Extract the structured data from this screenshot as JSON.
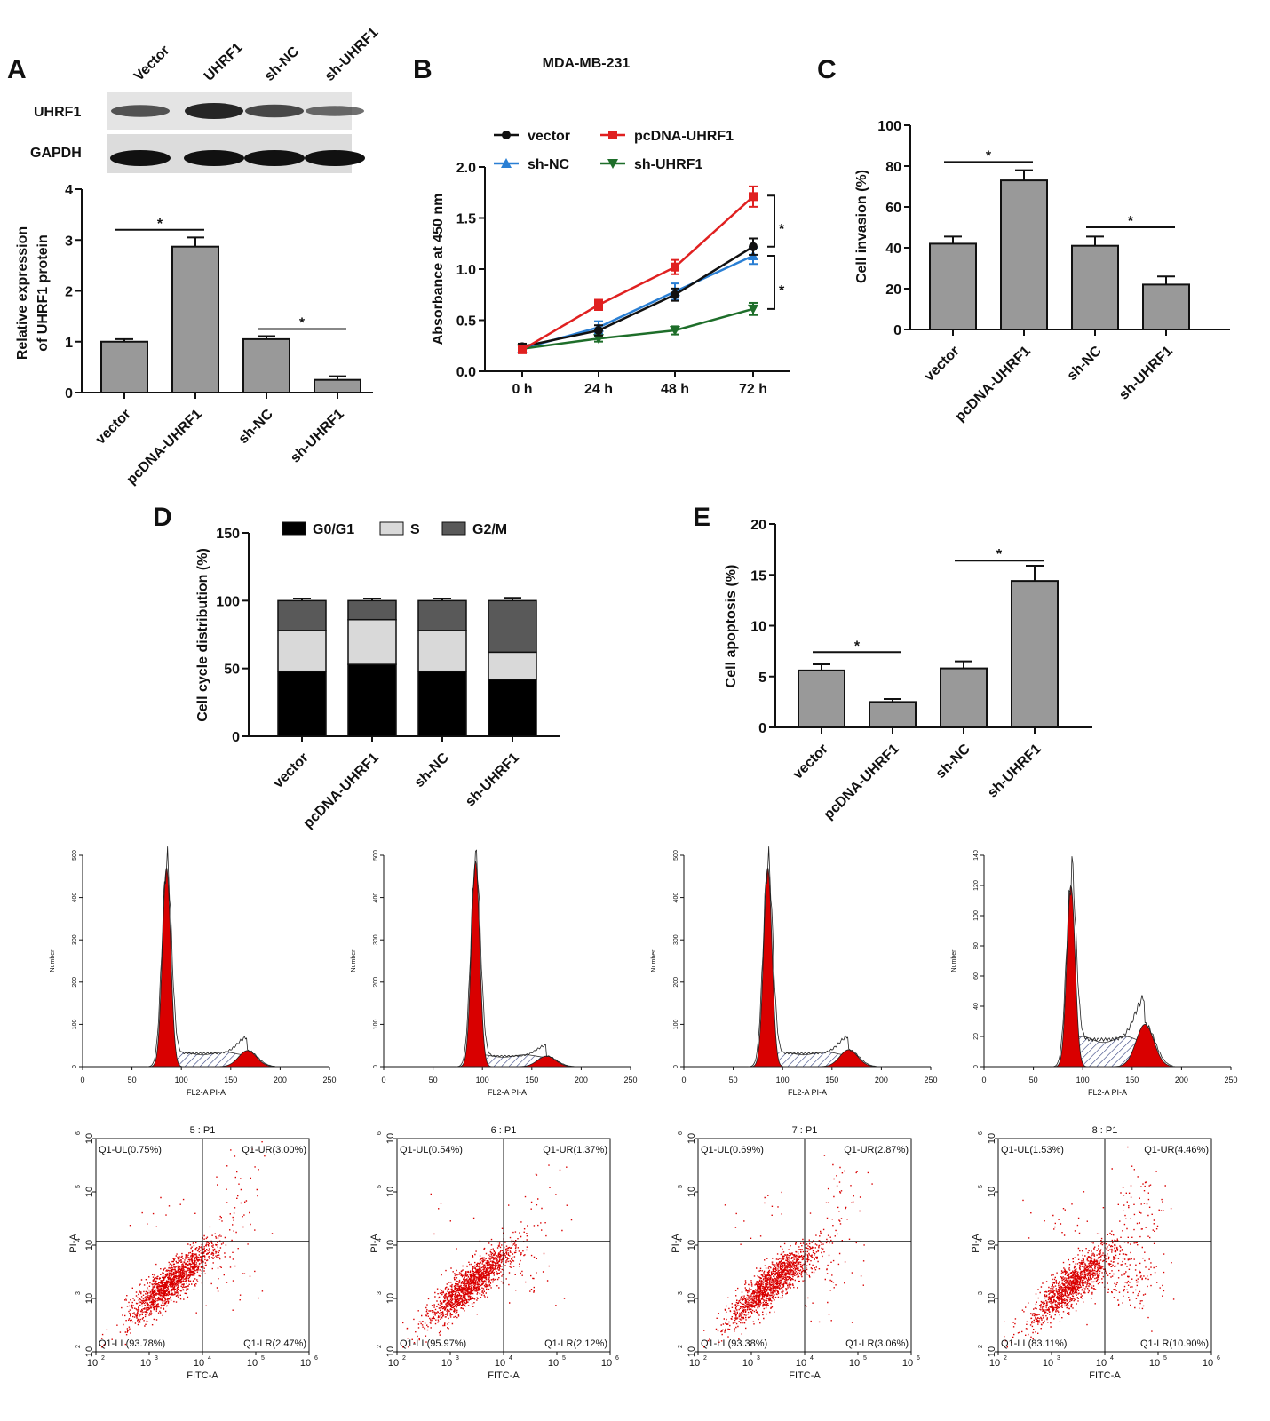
{
  "panels": {
    "a": "A",
    "b": "B",
    "c": "C",
    "d": "D",
    "e": "E"
  },
  "blot": {
    "lanes": [
      "Vector",
      "UHRF1",
      "sh-NC",
      "sh-UHRF1"
    ],
    "rows": [
      "UHRF1",
      "GAPDH"
    ]
  },
  "colors": {
    "bar": "#999999",
    "vector": "#111111",
    "pcdna": "#e02020",
    "shnc": "#2a7fd4",
    "shuhrf1": "#1e6e2a",
    "g0g1": "#000000",
    "s": "#d9d9d9",
    "g2m": "#595959",
    "flow": "#d90000"
  },
  "chart_data": [
    {
      "id": "a",
      "type": "bar",
      "categories": [
        "vector",
        "pcDNA-UHRF1",
        "sh-NC",
        "sh-UHRF1"
      ],
      "values": [
        1.0,
        2.87,
        1.05,
        0.25
      ],
      "errors": [
        0.05,
        0.18,
        0.06,
        0.07
      ],
      "ylabel_lines": [
        "Relative expression",
        "of UHRF1 protein"
      ],
      "ylim": [
        0,
        4
      ],
      "yticks": [
        0,
        1,
        2,
        3,
        4
      ],
      "sig": [
        {
          "from": 0,
          "to": 1,
          "label": "*",
          "y": 3.2
        },
        {
          "from": 2,
          "to": 3,
          "label": "*",
          "y": 1.25
        }
      ]
    },
    {
      "id": "b",
      "type": "line",
      "title": "MDA-MB-231",
      "x": [
        "0 h",
        "24 h",
        "48 h",
        "72 h"
      ],
      "ylabel": "Absorbance at 450 nm",
      "ylim": [
        0,
        2.0
      ],
      "yticks": [
        "0.0",
        "0.5",
        "1.0",
        "1.5",
        "2.0"
      ],
      "series": [
        {
          "name": "vector",
          "values": [
            0.24,
            0.4,
            0.75,
            1.22
          ],
          "errors": [
            0.03,
            0.05,
            0.06,
            0.08
          ]
        },
        {
          "name": "pcDNA-UHRF1",
          "values": [
            0.21,
            0.65,
            1.02,
            1.71
          ],
          "errors": [
            0.03,
            0.05,
            0.07,
            0.1
          ]
        },
        {
          "name": "sh-NC",
          "values": [
            0.22,
            0.43,
            0.78,
            1.13
          ],
          "errors": [
            0.03,
            0.06,
            0.08,
            0.08
          ]
        },
        {
          "name": "sh-UHRF1",
          "values": [
            0.22,
            0.32,
            0.4,
            0.61
          ],
          "errors": [
            0.03,
            0.03,
            0.04,
            0.06
          ]
        }
      ],
      "sig": [
        "*",
        "*"
      ]
    },
    {
      "id": "c",
      "type": "bar",
      "categories": [
        "vector",
        "pcDNA-UHRF1",
        "sh-NC",
        "sh-UHRF1"
      ],
      "values": [
        42,
        73,
        41,
        22
      ],
      "errors": [
        3.5,
        5,
        4.5,
        4
      ],
      "ylabel": "Cell invasion (%)",
      "ylim": [
        0,
        100
      ],
      "yticks": [
        0,
        20,
        40,
        60,
        80,
        100
      ],
      "sig": [
        {
          "from": 0,
          "to": 1,
          "label": "*",
          "y": 82
        },
        {
          "from": 2,
          "to": 3,
          "label": "*",
          "y": 50
        }
      ]
    },
    {
      "id": "d",
      "type": "bar",
      "categories": [
        "vector",
        "pcDNA-UHRF1",
        "sh-NC",
        "sh-UHRF1"
      ],
      "series": [
        {
          "name": "G0/G1",
          "values": [
            48,
            53,
            48,
            42
          ],
          "errors": [
            3,
            2,
            3,
            2
          ]
        },
        {
          "name": "S",
          "values": [
            30,
            33,
            30,
            20
          ],
          "errors": [
            2,
            2,
            2,
            1
          ]
        },
        {
          "name": "G2/M",
          "values": [
            22,
            14,
            22,
            38
          ],
          "errors": [
            1.5,
            1.5,
            1.5,
            2
          ]
        }
      ],
      "ylabel": "Cell cycle distribution (%)",
      "ylim": [
        0,
        150
      ],
      "yticks": [
        0,
        50,
        100,
        150
      ]
    },
    {
      "id": "e",
      "type": "bar",
      "categories": [
        "vector",
        "pcDNA-UHRF1",
        "sh-NC",
        "sh-UHRF1"
      ],
      "values": [
        5.6,
        2.5,
        5.8,
        14.4
      ],
      "errors": [
        0.6,
        0.3,
        0.7,
        1.5
      ],
      "ylabel": "Cell apoptosis (%)",
      "ylim": [
        0,
        20
      ],
      "yticks": [
        0,
        5,
        10,
        15,
        20
      ],
      "sig": [
        {
          "from": 0,
          "to": 1,
          "label": "*",
          "y": 7.4
        },
        {
          "from": 2,
          "to": 3,
          "label": "*",
          "y": 16.4
        }
      ]
    }
  ],
  "histograms": {
    "ylabel": "Number",
    "xlabel": "FL2-A PI-A",
    "xticks": [
      0,
      50,
      100,
      150,
      200,
      250
    ],
    "panels": [
      {
        "ymax": 500,
        "yticks": [
          0,
          100,
          200,
          300,
          400,
          500
        ],
        "g1_peak": 470,
        "g1_pos": 85,
        "g2_peak": 38,
        "g2_pos": 167,
        "s_level": 35
      },
      {
        "ymax": 500,
        "yticks": [
          0,
          100,
          200,
          300,
          400,
          500
        ],
        "g1_peak": 485,
        "g1_pos": 93,
        "g2_peak": 25,
        "g2_pos": 165,
        "s_level": 28
      },
      {
        "ymax": 500,
        "yticks": [
          0,
          100,
          200,
          300,
          400,
          500
        ],
        "g1_peak": 470,
        "g1_pos": 85,
        "g2_peak": 40,
        "g2_pos": 167,
        "s_level": 35
      },
      {
        "ymax": 140,
        "yticks": [
          0,
          20,
          40,
          60,
          80,
          100,
          120,
          140
        ],
        "g1_peak": 120,
        "g1_pos": 88,
        "g2_peak": 28,
        "g2_pos": 163,
        "s_level": 20
      }
    ]
  },
  "flow_plots": {
    "xlabel": "FITC-A",
    "ylabel": "PI-A",
    "ticks": [
      "10",
      "10",
      "10",
      "10",
      "10"
    ],
    "exps": [
      "2",
      "3",
      "4",
      "5",
      "6"
    ],
    "panels": [
      {
        "title": "5 : P1",
        "ul": "Q1-UL(0.75%)",
        "ur": "Q1-UR(3.00%)",
        "ll": "Q1-LL(93.78%)",
        "lr": "Q1-LR(2.47%)",
        "ur_frac": 0.03,
        "lr_frac": 0.0247,
        "ul_frac": 0.0075
      },
      {
        "title": "6 : P1",
        "ul": "Q1-UL(0.54%)",
        "ur": "Q1-UR(1.37%)",
        "ll": "Q1-LL(95.97%)",
        "lr": "Q1-LR(2.12%)",
        "ur_frac": 0.0137,
        "lr_frac": 0.0212,
        "ul_frac": 0.0054
      },
      {
        "title": "7 : P1",
        "ul": "Q1-UL(0.69%)",
        "ur": "Q1-UR(2.87%)",
        "ll": "Q1-LL(93.38%)",
        "lr": "Q1-LR(3.06%)",
        "ur_frac": 0.0287,
        "lr_frac": 0.0306,
        "ul_frac": 0.0069
      },
      {
        "title": "8 : P1",
        "ul": "Q1-UL(1.53%)",
        "ur": "Q1-UR(4.46%)",
        "ll": "Q1-LL(83.11%)",
        "lr": "Q1-LR(10.90%)",
        "ur_frac": 0.0446,
        "lr_frac": 0.109,
        "ul_frac": 0.0153
      }
    ]
  }
}
